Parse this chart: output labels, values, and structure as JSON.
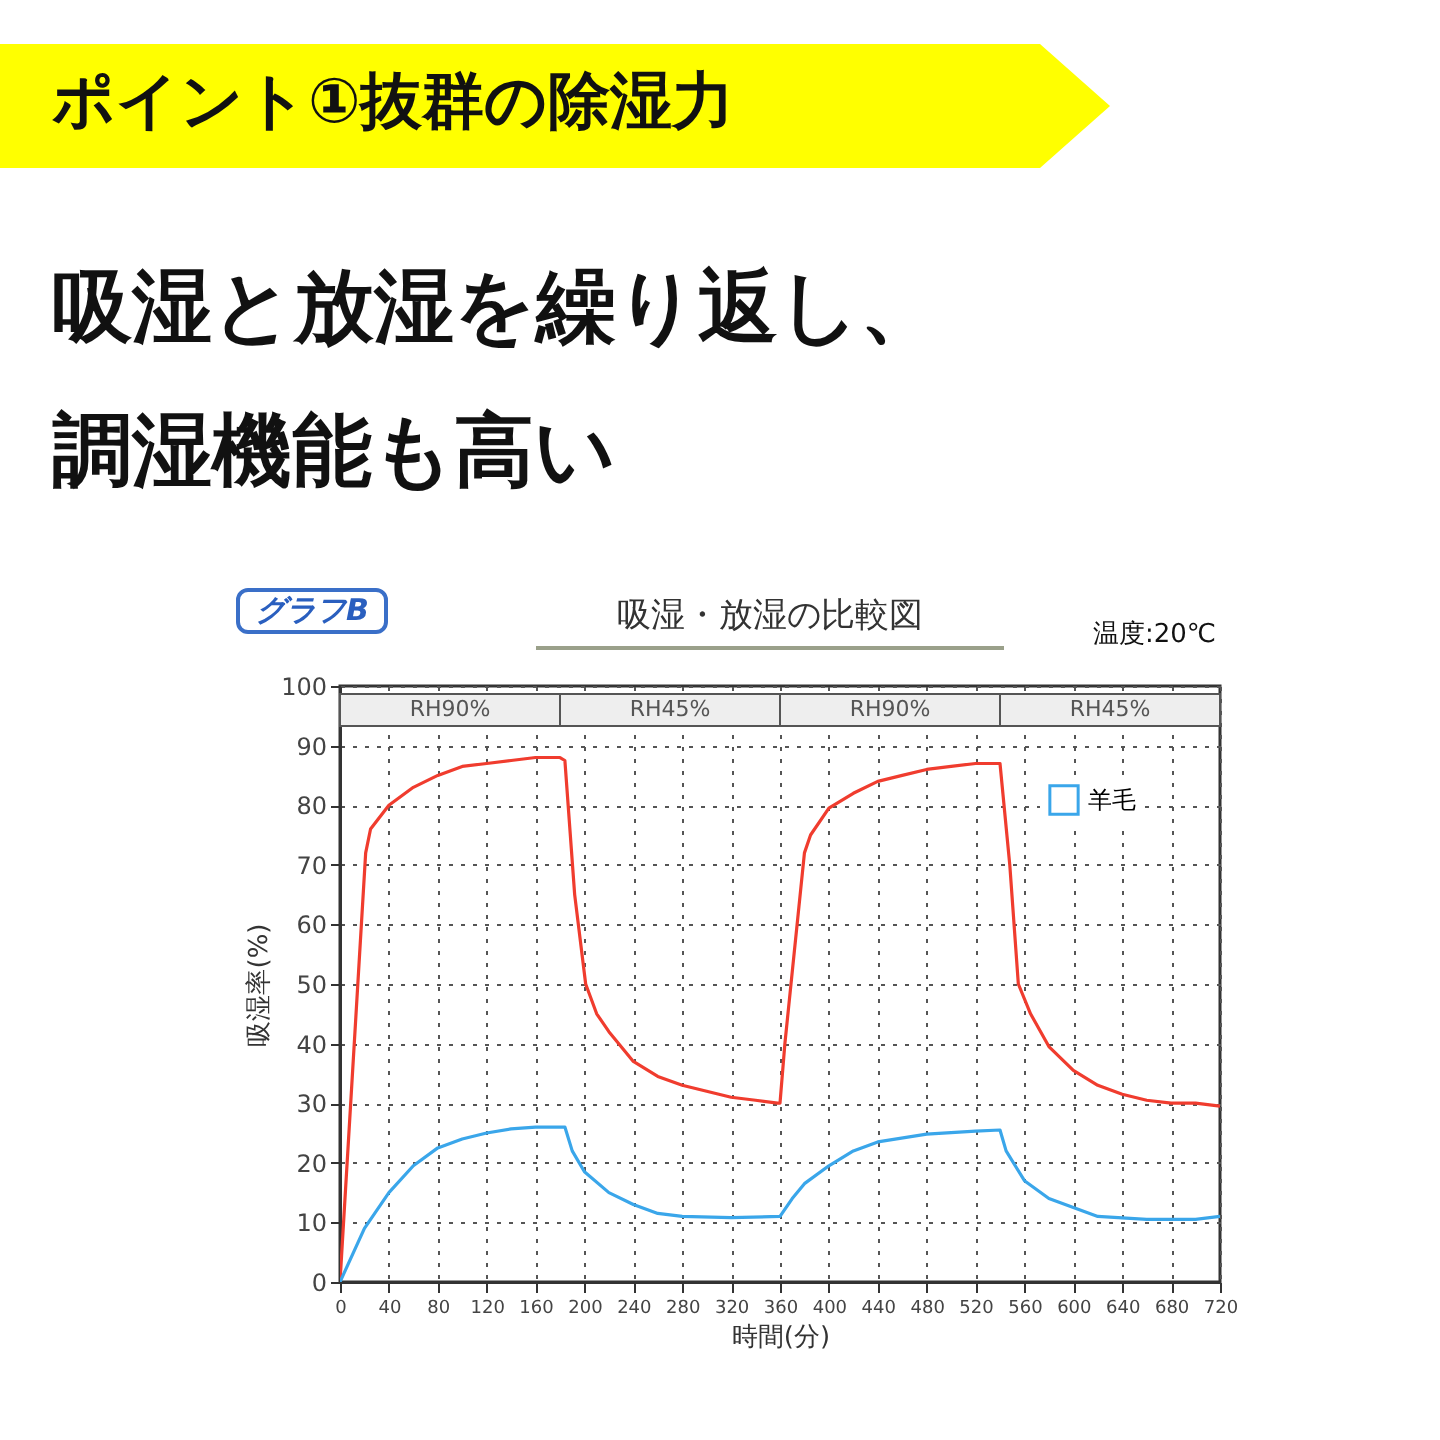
{
  "chart_data": {
    "type": "line",
    "title": "ポイント①抜群の除湿力",
    "subtitle": "吸湿と放湿を繰り返し、調湿機能も高い",
    "annotations": [
      "グラフB",
      "吸湿・放湿の比較図",
      "温度:20℃"
    ],
    "bands": [
      {
        "axis": "x",
        "from": 0,
        "to": 180,
        "label": "RH90%",
        "color": "#555555"
      },
      {
        "axis": "x",
        "from": 180,
        "to": 360,
        "label": "RH45%",
        "color": "#555555"
      },
      {
        "axis": "x",
        "from": 360,
        "to": 540,
        "label": "RH90%",
        "color": "#555555"
      },
      {
        "axis": "x",
        "from": 540,
        "to": 720,
        "label": "RH45%",
        "color": "#555555"
      }
    ],
    "xlabel": "時間(分)",
    "ylabel": "吸湿率(%)",
    "xlim": [
      0,
      720
    ],
    "xticks": [
      0,
      40,
      80,
      120,
      160,
      200,
      240,
      280,
      320,
      360,
      400,
      440,
      480,
      520,
      560,
      600,
      640,
      680,
      720
    ],
    "ylim": [
      0,
      100
    ],
    "yticks": [
      0,
      10,
      20,
      30,
      40,
      50,
      60,
      70,
      80,
      90,
      100
    ],
    "grid": true,
    "legend": "top right",
    "line_style": "solid",
    "series": [
      {
        "color": "#f03c2e",
        "x": [
          0,
          21,
          25,
          40,
          60,
          80,
          100,
          120,
          140,
          160,
          180,
          184,
          192,
          201,
          210,
          220,
          240,
          260,
          280,
          300,
          320,
          340,
          358,
          360,
          364,
          380,
          385,
          400,
          420,
          440,
          460,
          480,
          500,
          520,
          540,
          548,
          555,
          565,
          580,
          600,
          620,
          640,
          660,
          680,
          700,
          720
        ],
        "values": [
          0,
          72,
          76,
          80,
          83,
          85,
          86.5,
          87,
          87.5,
          88,
          88,
          87.5,
          65,
          50,
          45,
          42,
          37,
          34.5,
          33,
          32,
          31,
          30.5,
          30,
          30,
          40,
          72,
          75,
          79.5,
          82,
          84,
          85,
          86,
          86.5,
          87,
          87,
          70,
          50,
          45,
          39.5,
          35.5,
          33,
          31.5,
          30.5,
          30,
          30,
          29.5
        ]
      },
      {
        "name": "羊毛",
        "color": "#3aa6ea",
        "x": [
          0,
          20,
          40,
          60,
          80,
          100,
          120,
          140,
          160,
          184,
          190,
          200,
          220,
          240,
          260,
          280,
          320,
          360,
          370,
          380,
          400,
          420,
          440,
          480,
          520,
          540,
          545,
          560,
          580,
          600,
          620,
          660,
          700,
          720
        ],
        "values": [
          0,
          9,
          15,
          19.5,
          22.5,
          24,
          25,
          25.7,
          26,
          26,
          22,
          18.5,
          15,
          13,
          11.5,
          11,
          10.8,
          11,
          14,
          16.5,
          19.5,
          22,
          23.5,
          24.8,
          25.3,
          25.5,
          22,
          17,
          14,
          12.5,
          11,
          10.5,
          10.5,
          11
        ]
      }
    ]
  }
}
